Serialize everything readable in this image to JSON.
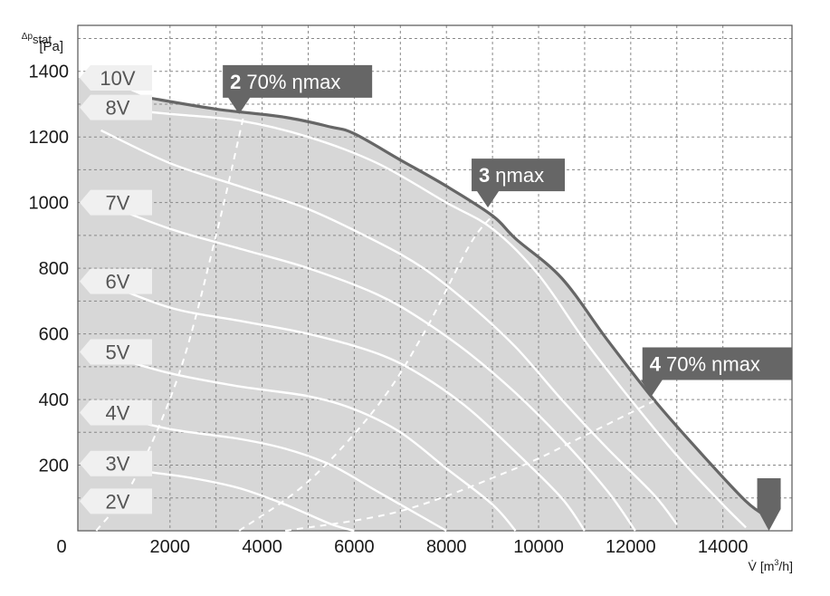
{
  "chart_data": {
    "type": "line",
    "xlabel": "V̇ [m³/h]",
    "ylabel": "Δpstat [Pa]",
    "ylabel_parts": {
      "symbol": "Δp",
      "sub": "stat",
      "unit": "[Pa]"
    },
    "xlabel_parts": {
      "symbol": "V̇",
      "unit_pre": "[m",
      "unit_sup": "3",
      "unit_post": "/h]"
    },
    "xlim": [
      0,
      15500
    ],
    "ylim": [
      0,
      1400
    ],
    "x_ticks": [
      "0",
      "2000",
      "4000",
      "6000",
      "8000",
      "10000",
      "12000",
      "14000"
    ],
    "y_ticks": [
      "200",
      "400",
      "600",
      "800",
      "1000",
      "1200",
      "1400"
    ],
    "grid": true,
    "colors": {
      "envelope_fill": "#d7d7d7",
      "envelope_line": "#666666",
      "voltage_lines": "#ffffff",
      "callout": "#666666",
      "label_box": "#f0f0f0"
    },
    "envelope": [
      [
        1500,
        1320
      ],
      [
        3000,
        1285
      ],
      [
        4500,
        1260
      ],
      [
        5500,
        1230
      ],
      [
        6000,
        1210
      ],
      [
        7000,
        1130
      ],
      [
        8000,
        1050
      ],
      [
        9000,
        960
      ],
      [
        9500,
        890
      ],
      [
        10500,
        770
      ],
      [
        11500,
        580
      ],
      [
        12500,
        400
      ],
      [
        13500,
        240
      ],
      [
        14500,
        90
      ],
      [
        15000,
        40
      ]
    ],
    "series": [
      {
        "name": "10V",
        "label": "10V",
        "label_y": 1380,
        "points": [
          [
            500,
            1380
          ],
          [
            1500,
            1320
          ],
          [
            3000,
            1285
          ],
          [
            4500,
            1260
          ],
          [
            5500,
            1230
          ],
          [
            6000,
            1210
          ],
          [
            7000,
            1130
          ],
          [
            8000,
            1050
          ],
          [
            9000,
            960
          ],
          [
            9500,
            890
          ],
          [
            10500,
            770
          ],
          [
            11500,
            580
          ],
          [
            12500,
            400
          ],
          [
            13500,
            240
          ],
          [
            14500,
            90
          ],
          [
            15000,
            40
          ]
        ]
      },
      {
        "name": "8V",
        "label": "8V",
        "label_y": 1290,
        "points": [
          [
            500,
            1290
          ],
          [
            2000,
            1270
          ],
          [
            3500,
            1250
          ],
          [
            5000,
            1200
          ],
          [
            6500,
            1120
          ],
          [
            8000,
            1000
          ],
          [
            9000,
            920
          ],
          [
            10000,
            780
          ],
          [
            11000,
            580
          ],
          [
            12000,
            400
          ],
          [
            13000,
            230
          ],
          [
            14000,
            80
          ],
          [
            14500,
            10
          ]
        ]
      },
      {
        "name": "7V",
        "label": "7V",
        "label_y": 1000,
        "points": [
          [
            500,
            1220
          ],
          [
            2000,
            1120
          ],
          [
            3500,
            1050
          ],
          [
            5000,
            980
          ],
          [
            6500,
            880
          ],
          [
            7500,
            800
          ],
          [
            8500,
            690
          ],
          [
            9500,
            560
          ],
          [
            10500,
            400
          ],
          [
            11500,
            250
          ],
          [
            12500,
            110
          ],
          [
            13000,
            20
          ]
        ]
      },
      {
        "name": "6V",
        "label": "6V",
        "label_y": 760,
        "points": [
          [
            500,
            1000
          ],
          [
            2000,
            920
          ],
          [
            3500,
            860
          ],
          [
            5000,
            800
          ],
          [
            6500,
            720
          ],
          [
            7500,
            640
          ],
          [
            8500,
            540
          ],
          [
            9500,
            420
          ],
          [
            10500,
            280
          ],
          [
            11500,
            120
          ],
          [
            12100,
            0
          ]
        ]
      },
      {
        "name": "5V",
        "label": "5V",
        "label_y": 545,
        "points": [
          [
            500,
            760
          ],
          [
            2000,
            680
          ],
          [
            3500,
            640
          ],
          [
            5000,
            600
          ],
          [
            6500,
            540
          ],
          [
            7500,
            470
          ],
          [
            8500,
            370
          ],
          [
            9500,
            240
          ],
          [
            10500,
            100
          ],
          [
            11000,
            0
          ]
        ]
      },
      {
        "name": "4V",
        "label": "4V",
        "label_y": 360,
        "points": [
          [
            500,
            540
          ],
          [
            2000,
            480
          ],
          [
            3500,
            440
          ],
          [
            5000,
            410
          ],
          [
            6000,
            370
          ],
          [
            7000,
            300
          ],
          [
            8000,
            190
          ],
          [
            9000,
            80
          ],
          [
            9500,
            0
          ]
        ]
      },
      {
        "name": "3V",
        "label": "3V",
        "label_y": 205,
        "points": [
          [
            500,
            360
          ],
          [
            2000,
            310
          ],
          [
            3500,
            280
          ],
          [
            4500,
            250
          ],
          [
            5500,
            200
          ],
          [
            6500,
            120
          ],
          [
            7500,
            40
          ],
          [
            8000,
            0
          ]
        ]
      },
      {
        "name": "2V",
        "label": "2V",
        "label_y": 90,
        "points": [
          [
            500,
            200
          ],
          [
            1500,
            180
          ],
          [
            2500,
            160
          ],
          [
            3500,
            130
          ],
          [
            4500,
            80
          ],
          [
            5500,
            20
          ],
          [
            6000,
            0
          ]
        ]
      }
    ],
    "efficiency_lines": [
      {
        "name": "2 70% ηmax",
        "points": [
          [
            400,
            0
          ],
          [
            1200,
            150
          ],
          [
            2200,
            480
          ],
          [
            3000,
            900
          ],
          [
            3600,
            1265
          ]
        ]
      },
      {
        "name": "3 ηmax",
        "points": [
          [
            3500,
            0
          ],
          [
            5000,
            150
          ],
          [
            6500,
            380
          ],
          [
            7500,
            600
          ],
          [
            8500,
            870
          ],
          [
            9000,
            960
          ]
        ]
      },
      {
        "name": "4 70% ηmax",
        "points": [
          [
            4500,
            0
          ],
          [
            7000,
            60
          ],
          [
            9500,
            190
          ],
          [
            11000,
            290
          ],
          [
            12500,
            395
          ]
        ]
      }
    ],
    "annotations": [
      {
        "number": "2",
        "text": "70% ηmax",
        "x": 3500,
        "y": 1270
      },
      {
        "number": "3",
        "text": "ηmax",
        "x": 8900,
        "y": 985
      },
      {
        "number": "4",
        "text": "70% ηmax",
        "x": 12450,
        "y": 410
      }
    ],
    "end_marker": {
      "x": 15000,
      "y": 0
    }
  }
}
